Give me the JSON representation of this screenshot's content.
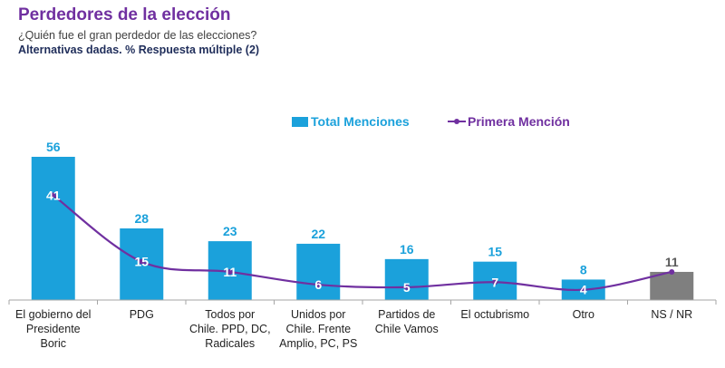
{
  "header": {
    "title": "Perdedores de la elección",
    "subtitle": "¿Quién fue el gran perdedor de las elecciones?",
    "subtitle2": "Alternativas dadas. % Respuesta múltiple (2)"
  },
  "legend": {
    "bars": "Total Menciones",
    "line": "Primera Mención"
  },
  "colors": {
    "bar": "#1BA1DB",
    "bar_nsnr": "#7F7F7F",
    "line": "#7030A0",
    "title": "#7030A0"
  },
  "chart_data": {
    "type": "bar",
    "categories": [
      "El gobierno del Presidente Boric",
      "PDG",
      "Todos por Chile. PPD, DC, Radicales",
      "Unidos por Chile. Frente Amplio, PC, PS",
      "Partidos de Chile Vamos",
      "El octubrismo",
      "Otro",
      "NS / NR"
    ],
    "series": [
      {
        "name": "Total Menciones",
        "type": "bar",
        "values": [
          56,
          28,
          23,
          22,
          16,
          15,
          8,
          11
        ]
      },
      {
        "name": "Primera Mención",
        "type": "line",
        "values": [
          41,
          15,
          11,
          6,
          5,
          7,
          4,
          null
        ]
      }
    ],
    "title": "Perdedores de la elección",
    "ylim": [
      0,
      60
    ],
    "grid": false,
    "legend_position": "top-right"
  }
}
